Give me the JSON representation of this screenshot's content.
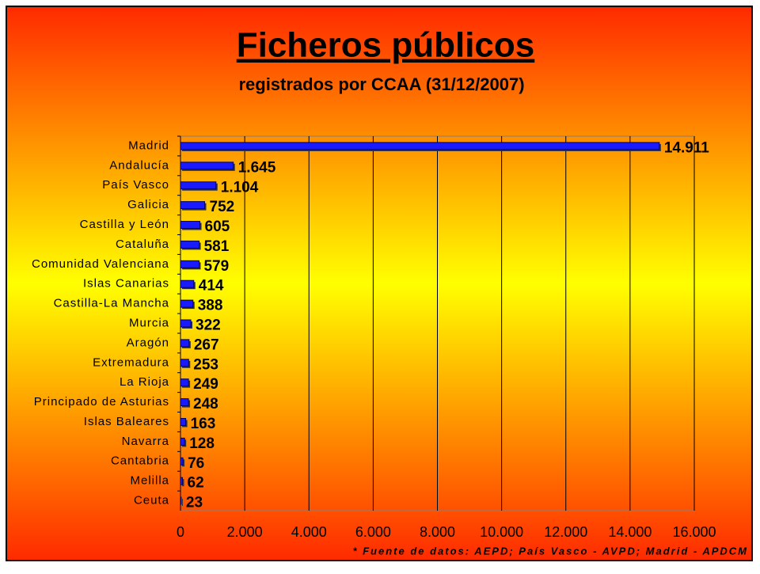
{
  "chart_data": {
    "type": "bar",
    "orientation": "horizontal",
    "title": "Ficheros públicos",
    "subtitle": "registrados por CCAA (31/12/2007)",
    "note": "* Fuente de datos: AEPD; País Vasco - AVPD; Madrid - APDCM",
    "categories": [
      "Madrid",
      "Andalucía",
      "País Vasco",
      "Galicia",
      "Castilla y León",
      "Cataluña",
      "Comunidad Valenciana",
      "Islas Canarias",
      "Castilla-La Mancha",
      "Murcia",
      "Aragón",
      "Extremadura",
      "La Rioja",
      "Principado de Asturias",
      "Islas Baleares",
      "Navarra",
      "Cantabria",
      "Melilla",
      "Ceuta"
    ],
    "values": [
      14911,
      1645,
      1104,
      752,
      605,
      581,
      579,
      414,
      388,
      322,
      267,
      253,
      249,
      248,
      163,
      128,
      76,
      62,
      23
    ],
    "value_labels": [
      "14.911",
      "1.645",
      "1.104",
      "752",
      "605",
      "581",
      "579",
      "414",
      "388",
      "322",
      "267",
      "253",
      "249",
      "248",
      "163",
      "128",
      "76",
      "62",
      "23"
    ],
    "color": "#1a1aff",
    "xlim": [
      0,
      16000
    ],
    "xticks": [
      0,
      {
        "value": 2000,
        "label": "2.000"
      },
      {
        "value": 4000,
        "label": "4.000"
      },
      {
        "value": 6000,
        "label": "6.000"
      },
      {
        "value": 8000,
        "label": "8.000"
      },
      {
        "value": 10000,
        "label": "10.000"
      },
      {
        "value": 12000,
        "label": "12.000"
      },
      {
        "value": 14000,
        "label": "14.000"
      },
      {
        "value": 16000,
        "label": "16.000"
      }
    ],
    "grid": true
  }
}
